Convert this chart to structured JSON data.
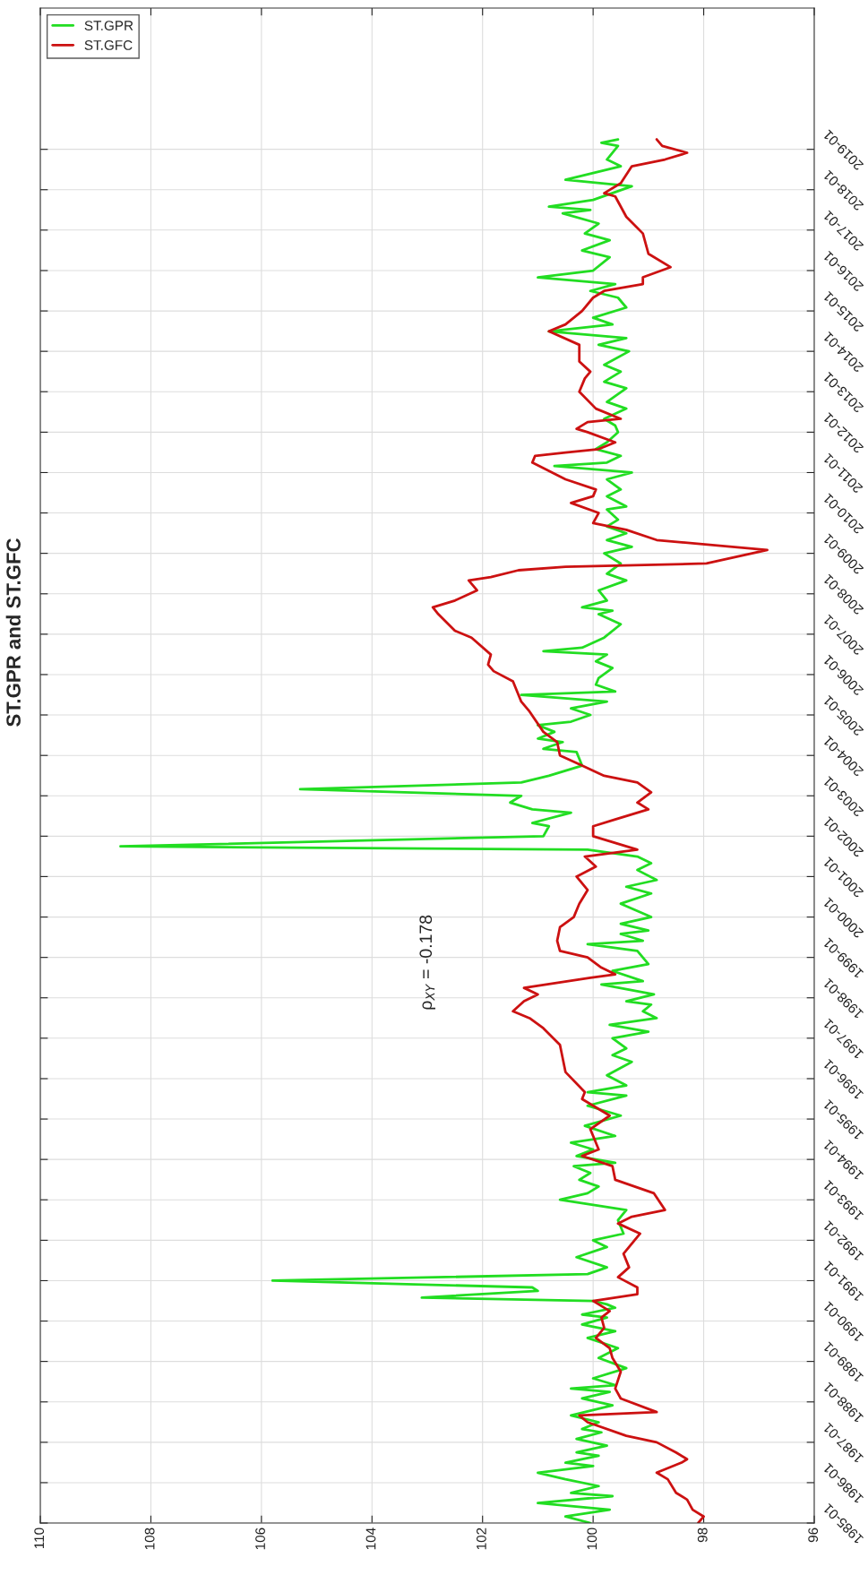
{
  "chart_data": {
    "type": "line",
    "title": "ST.GPR and ST.GFC",
    "annotations": [
      "ρ$_{XY}$ = -0.178"
    ],
    "orientation": "horizontal",
    "ylim": [
      "1985-01",
      "2022-07"
    ],
    "xlim": [
      110,
      96
    ],
    "yticks": [
      "1985-01",
      "1986-01",
      "1987-01",
      "1988-01",
      "1989-01",
      "1990-01",
      "1991-01",
      "1992-01",
      "1993-01",
      "1994-01",
      "1995-01",
      "1996-01",
      "1997-01",
      "1998-01",
      "1999-01",
      "2000-01",
      "2001-01",
      "2002-01",
      "2003-01",
      "2004-01",
      "2005-01",
      "2006-01",
      "2007-01",
      "2008-01",
      "2009-01",
      "2010-01",
      "2011-01",
      "2012-01",
      "2013-01",
      "2014-01",
      "2015-01",
      "2016-01",
      "2017-01",
      "2018-01",
      "2019-01"
    ],
    "xticks": [
      110,
      108,
      106,
      104,
      102,
      100,
      98,
      96
    ],
    "grid": true,
    "legend": "top left",
    "series": [
      {
        "name": "ST.GPR",
        "color": "#22dd22",
        "x": [
          "1985-01",
          "1985-03",
          "1985-05",
          "1985-07",
          "1985-09",
          "1985-10",
          "1985-12",
          "1986-02",
          "1986-04",
          "1986-06",
          "1986-07",
          "1986-09",
          "1986-10",
          "1986-12",
          "1987-02",
          "1987-04",
          "1987-05",
          "1987-07",
          "1987-09",
          "1987-12",
          "1988-02",
          "1988-04",
          "1988-05",
          "1988-06",
          "1988-08",
          "1988-11",
          "1989-02",
          "1989-05",
          "1989-08",
          "1989-10",
          "1989-12",
          "1990-02",
          "1990-03",
          "1990-05",
          "1990-06",
          "1990-07",
          "1990-08",
          "1990-10",
          "1990-11",
          "1991-01",
          "1991-03",
          "1991-05",
          "1991-08",
          "1991-11",
          "1992-01",
          "1992-03",
          "1992-07",
          "1992-10",
          "1993-01",
          "1993-03",
          "1993-05",
          "1993-07",
          "1993-09",
          "1993-11",
          "1993-12",
          "1994-02",
          "1994-04",
          "1994-06",
          "1994-08",
          "1994-11",
          "1995-02",
          "1995-05",
          "1995-08",
          "1995-09",
          "1995-11",
          "1996-02",
          "1996-06",
          "1996-08",
          "1996-10",
          "1997-01",
          "1997-03",
          "1997-05",
          "1997-07",
          "1997-09",
          "1997-11",
          "1997-12",
          "1998-02",
          "1998-05",
          "1998-06",
          "1998-09",
          "1998-11",
          "1999-03",
          "1999-05",
          "1999-06",
          "1999-08",
          "1999-09",
          "1999-11",
          "2000-01",
          "2000-05",
          "2000-08",
          "2000-10",
          "2000-12",
          "2001-03",
          "2001-05",
          "2001-07",
          "2001-09",
          "2001-10",
          "2002-01",
          "2002-04",
          "2002-05",
          "2002-08",
          "2002-09",
          "2002-11",
          "2003-01",
          "2003-03",
          "2003-05",
          "2003-07",
          "2003-10",
          "2004-02",
          "2004-03",
          "2004-05",
          "2004-06",
          "2004-08",
          "2004-10",
          "2004-11",
          "2005-01",
          "2005-03",
          "2005-05",
          "2005-07",
          "2005-08",
          "2005-10",
          "2005-12",
          "2006-03",
          "2006-05",
          "2006-07",
          "2006-08",
          "2006-09",
          "2006-12",
          "2007-04",
          "2007-07",
          "2007-08",
          "2007-09",
          "2007-11",
          "2008-02",
          "2008-05",
          "2008-07",
          "2008-10",
          "2009-01",
          "2009-03",
          "2009-05",
          "2009-07",
          "2009-09",
          "2009-11",
          "2010-02",
          "2010-03",
          "2010-06",
          "2010-08",
          "2010-11",
          "2011-01",
          "2011-03",
          "2011-04",
          "2011-06",
          "2011-08",
          "2011-10",
          "2012-01",
          "2012-03",
          "2012-05",
          "2012-08",
          "2012-10",
          "2013-02",
          "2013-04",
          "2013-07",
          "2013-09",
          "2014-01",
          "2014-03",
          "2014-05",
          "2014-07",
          "2014-09",
          "2014-11",
          "2015-02",
          "2015-05",
          "2015-07",
          "2015-09",
          "2015-11",
          "2016-01",
          "2016-05",
          "2016-07",
          "2016-10",
          "2016-12",
          "2017-03",
          "2017-06",
          "2017-07",
          "2017-08",
          "2017-10",
          "2018-02",
          "2018-04",
          "2018-06",
          "2018-08",
          "2018-10",
          "2019-02",
          "2019-03",
          "2019-04"
        ],
        "values": [
          100.05,
          100.5,
          99.7,
          101.0,
          99.65,
          100.4,
          99.9,
          100.5,
          101.0,
          100.0,
          100.5,
          99.9,
          100.3,
          99.75,
          100.3,
          99.85,
          100.2,
          99.9,
          100.4,
          99.65,
          100.2,
          99.7,
          100.4,
          99.6,
          100.0,
          99.4,
          99.9,
          99.55,
          100.1,
          99.6,
          100.2,
          99.75,
          100.2,
          99.6,
          99.75,
          100.0,
          103.1,
          101.0,
          101.1,
          105.8,
          100.1,
          99.75,
          100.3,
          99.75,
          100.0,
          99.45,
          99.55,
          99.4,
          100.6,
          100.1,
          99.9,
          100.25,
          100.05,
          100.35,
          99.6,
          100.3,
          100.0,
          100.4,
          99.6,
          100.15,
          99.5,
          100.1,
          99.4,
          100.1,
          99.4,
          99.75,
          99.3,
          99.65,
          99.4,
          99.65,
          99.0,
          99.7,
          98.85,
          99.1,
          98.95,
          99.4,
          98.9,
          99.85,
          99.1,
          99.65,
          99.0,
          99.2,
          100.1,
          99.1,
          99.5,
          99.0,
          99.5,
          98.95,
          99.5,
          98.95,
          99.4,
          98.85,
          99.2,
          98.95,
          99.2,
          100.1,
          108.55,
          100.9,
          100.8,
          101.1,
          100.4,
          101.1,
          101.5,
          101.3,
          105.3,
          101.3,
          100.8,
          100.2,
          100.3,
          100.9,
          100.55,
          101.0,
          100.7,
          101.0,
          100.4,
          100.05,
          100.4,
          99.75,
          101.3,
          99.6,
          99.95,
          99.9,
          99.65,
          99.95,
          99.75,
          100.9,
          100.2,
          99.8,
          99.5,
          99.9,
          99.65,
          100.2,
          99.75,
          99.9,
          99.4,
          99.75,
          99.5,
          99.8,
          99.3,
          99.75,
          99.4,
          99.75,
          99.55,
          99.75,
          99.4,
          99.75,
          99.5,
          99.75,
          99.3,
          100.7,
          99.75,
          99.5,
          99.95,
          99.75,
          99.55,
          99.6,
          99.8,
          99.4,
          99.75,
          99.4,
          99.8,
          99.5,
          99.8,
          99.35,
          99.9,
          99.4,
          100.8,
          99.65,
          100.0,
          99.4,
          99.55,
          100.05,
          99.6,
          101.0,
          100.0,
          99.7,
          100.2,
          99.7,
          100.15,
          99.9,
          100.55,
          100.05,
          100.8,
          100.0,
          99.3,
          100.5,
          100.0,
          99.5,
          99.75,
          99.55,
          99.85,
          99.55
        ]
      },
      {
        "name": "ST.GFC",
        "color": "#cc1111",
        "x": [
          "1985-01",
          "1985-03",
          "1985-05",
          "1985-08",
          "1985-10",
          "1986-02",
          "1986-04",
          "1986-07",
          "1986-08",
          "1986-10",
          "1987-01",
          "1987-03",
          "1987-07",
          "1987-09",
          "1987-10",
          "1988-02",
          "1988-05",
          "1988-10",
          "1989-02",
          "1989-05",
          "1989-08",
          "1989-11",
          "1990-02",
          "1990-04",
          "1990-07",
          "1990-09",
          "1990-11",
          "1991-02",
          "1991-05",
          "1991-09",
          "1992-03",
          "1992-06",
          "1992-08",
          "1992-10",
          "1993-03",
          "1993-07",
          "1993-11",
          "1994-02",
          "1994-04",
          "1994-10",
          "1995-02",
          "1995-07",
          "1995-09",
          "1996-03",
          "1996-11",
          "1997-04",
          "1997-07",
          "1997-09",
          "1997-12",
          "1998-02",
          "1998-04",
          "1998-07",
          "1998-08",
          "1998-10",
          "1999-01",
          "1999-03",
          "1999-06",
          "1999-10",
          "2000-01",
          "2000-05",
          "2000-09",
          "2001-01",
          "2001-04",
          "2001-07",
          "2001-09",
          "2001-11",
          "2002-01",
          "2002-04",
          "2002-06",
          "2002-09",
          "2002-11",
          "2003-02",
          "2003-05",
          "2003-07",
          "2003-10",
          "2004-01",
          "2004-05",
          "2004-08",
          "2005-02",
          "2005-05",
          "2005-11",
          "2006-02",
          "2006-04",
          "2006-07",
          "2006-12",
          "2007-02",
          "2007-07",
          "2007-09",
          "2007-11",
          "2008-02",
          "2008-05",
          "2008-06",
          "2008-08",
          "2008-09",
          "2008-10",
          "2009-02",
          "2009-05",
          "2009-08",
          "2009-10",
          "2010-01",
          "2010-04",
          "2010-06",
          "2010-08",
          "2010-11",
          "2011-04",
          "2011-06",
          "2011-07",
          "2011-08",
          "2011-10",
          "2012-01",
          "2012-02",
          "2012-04",
          "2012-05",
          "2012-08",
          "2013-01",
          "2013-05",
          "2013-07",
          "2013-10",
          "2014-03",
          "2014-07",
          "2014-09",
          "2015-01",
          "2015-05",
          "2015-07",
          "2015-09",
          "2015-11",
          "2016-02",
          "2016-06",
          "2016-12",
          "2017-05",
          "2017-11",
          "2017-12",
          "2018-03",
          "2018-08",
          "2018-10",
          "2018-12",
          "2019-02",
          "2019-04"
        ],
        "values": [
          98.1,
          98.0,
          98.2,
          98.3,
          98.5,
          98.65,
          98.85,
          98.4,
          98.3,
          98.5,
          98.85,
          99.4,
          100.1,
          100.25,
          98.85,
          99.5,
          99.6,
          99.5,
          99.65,
          99.7,
          99.95,
          99.8,
          99.85,
          99.7,
          100.0,
          99.2,
          99.2,
          99.55,
          99.35,
          99.45,
          99.15,
          99.55,
          99.3,
          98.7,
          98.9,
          99.6,
          99.65,
          100.2,
          99.9,
          100.05,
          99.7,
          100.2,
          100.15,
          100.5,
          100.6,
          100.9,
          101.15,
          101.45,
          101.25,
          101.0,
          101.25,
          100.05,
          99.6,
          99.85,
          100.1,
          100.6,
          100.65,
          100.6,
          100.35,
          100.25,
          100.1,
          100.3,
          99.95,
          100.15,
          99.2,
          99.6,
          100.0,
          100.0,
          99.6,
          99.0,
          99.2,
          98.95,
          99.2,
          99.8,
          100.2,
          100.6,
          100.65,
          100.9,
          101.15,
          101.3,
          101.45,
          101.8,
          101.9,
          101.85,
          102.2,
          102.5,
          102.8,
          102.9,
          102.5,
          102.1,
          102.25,
          101.85,
          101.35,
          100.5,
          97.95,
          96.85,
          98.85,
          99.4,
          100.0,
          99.9,
          100.4,
          100.0,
          99.95,
          100.5,
          101.1,
          101.05,
          100.5,
          99.9,
          99.6,
          100.1,
          100.3,
          100.1,
          99.5,
          99.95,
          100.25,
          100.15,
          100.05,
          100.25,
          100.25,
          100.8,
          100.5,
          100.2,
          100.0,
          99.8,
          99.1,
          99.1,
          98.6,
          99.0,
          99.1,
          99.4,
          99.6,
          99.8,
          99.5,
          99.3,
          98.7,
          98.3,
          98.75,
          98.85
        ]
      }
    ]
  }
}
